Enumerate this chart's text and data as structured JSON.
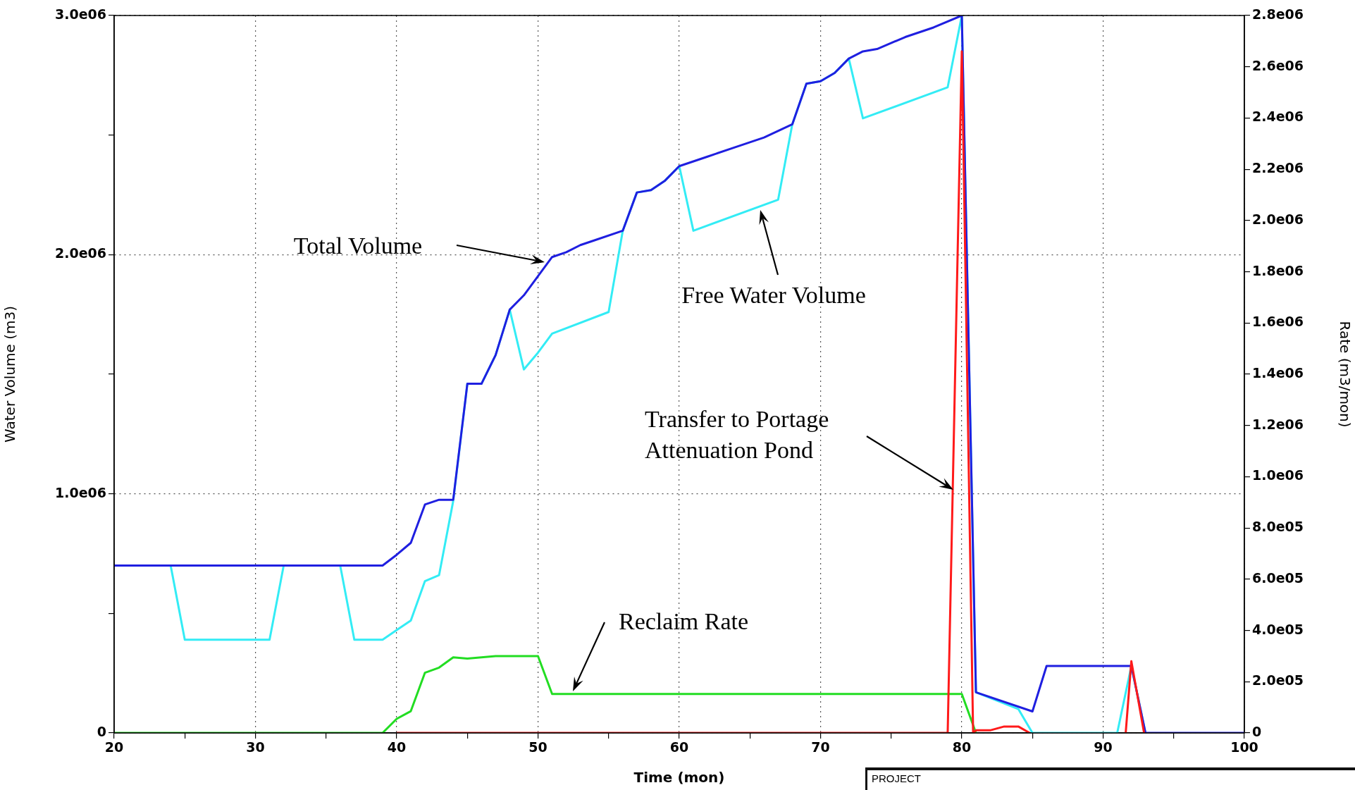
{
  "chart_data": {
    "type": "line",
    "xlabel": "Time (mon)",
    "ylabel": "Water Volume (m3)",
    "y2label": "Rate (m3/mon)",
    "xlim": [
      20,
      100
    ],
    "xticks": [
      20,
      {
        "value": 25,
        "label": null
      },
      30,
      {
        "value": 35,
        "label": null
      },
      40,
      {
        "value": 45,
        "label": null
      },
      50,
      {
        "value": 55,
        "label": null
      },
      60,
      {
        "value": 65,
        "label": null
      },
      70,
      {
        "value": 75,
        "label": null
      },
      80,
      {
        "value": 85,
        "label": null
      },
      90,
      {
        "value": 95,
        "label": null
      },
      100
    ],
    "ylim": [
      0,
      3000000
    ],
    "yticks": [
      {
        "value": 0,
        "label": "0"
      },
      {
        "value": 500000,
        "label": null
      },
      {
        "value": 1000000,
        "label": "1.0e06"
      },
      {
        "value": 1500000,
        "label": null
      },
      {
        "value": 2000000,
        "label": "2.0e06"
      },
      {
        "value": 2500000,
        "label": null
      },
      {
        "value": 3000000,
        "label": "3.0e06"
      }
    ],
    "y2lim": [
      0,
      2800000
    ],
    "y2ticks": [
      {
        "value": 0,
        "label": "0"
      },
      {
        "value": 200000,
        "label": "2.0e05"
      },
      {
        "value": 400000,
        "label": "4.0e05"
      },
      {
        "value": 600000,
        "label": "6.0e05"
      },
      {
        "value": 800000,
        "label": "8.0e05"
      },
      {
        "value": 1000000,
        "label": "1.0e06"
      },
      {
        "value": 1200000,
        "label": "1.2e06"
      },
      {
        "value": 1400000,
        "label": "1.4e06"
      },
      {
        "value": 1600000,
        "label": "1.6e06"
      },
      {
        "value": 1800000,
        "label": "1.8e06"
      },
      {
        "value": 2000000,
        "label": "2.0e06"
      },
      {
        "value": 2200000,
        "label": "2.2e06"
      },
      {
        "value": 2400000,
        "label": "2.4e06"
      },
      {
        "value": 2600000,
        "label": "2.6e06"
      },
      {
        "value": 2800000,
        "label": "2.8e06"
      }
    ],
    "grid": true,
    "legend": false,
    "marker": "none",
    "line_style": "solid",
    "series": [
      {
        "color": "#ff1a1a",
        "axis": "y2",
        "x": [
          40,
          79,
          80,
          80.8,
          81,
          82,
          83,
          84,
          84.8,
          88,
          91.6,
          92,
          92.9
        ],
        "values": [
          0,
          0,
          2660000,
          0,
          10000,
          10000,
          25000,
          25000,
          0,
          null,
          0,
          280000,
          0
        ]
      },
      {
        "color": "#1f1fe0",
        "x": [
          20,
          39,
          40,
          41,
          42,
          43,
          44,
          45,
          46,
          47,
          48,
          49,
          50,
          51,
          52,
          53,
          54,
          56,
          57,
          58,
          59,
          60,
          62,
          64,
          66,
          68,
          69,
          70,
          71,
          72,
          73,
          74,
          76,
          78,
          80,
          81,
          85,
          86,
          92,
          93,
          100
        ],
        "values": [
          700000,
          700000,
          745000,
          795000,
          955000,
          975000,
          975000,
          1460000,
          1460000,
          1580000,
          1770000,
          1830000,
          1910000,
          1990000,
          2010000,
          2040000,
          2060000,
          2100000,
          2260000,
          2270000,
          2310000,
          2370000,
          2410000,
          2450000,
          2490000,
          2545000,
          2715000,
          2725000,
          2760000,
          2820000,
          2850000,
          2860000,
          2910000,
          2950000,
          3000000,
          170000,
          90000,
          280000,
          280000,
          0,
          0
        ]
      },
      {
        "color": "#33ecf5",
        "x": [
          24,
          25,
          31,
          32,
          36,
          37,
          39,
          40,
          41,
          42,
          43,
          44,
          45,
          46,
          47,
          48,
          49,
          50,
          51,
          55,
          56,
          57,
          58,
          59,
          60,
          61,
          67,
          68,
          69,
          70,
          71,
          72,
          73,
          79,
          80,
          81,
          84,
          85,
          91,
          92,
          93
        ],
        "values": [
          700000,
          390000,
          390000,
          700000,
          700000,
          390000,
          390000,
          430000,
          470000,
          635000,
          660000,
          970000,
          1460000,
          1460000,
          1580000,
          1770000,
          1520000,
          1590000,
          1670000,
          1760000,
          2100000,
          2260000,
          2270000,
          2310000,
          2370000,
          2100000,
          2230000,
          2545000,
          2715000,
          2725000,
          2760000,
          2820000,
          2570000,
          2700000,
          3000000,
          170000,
          100000,
          0,
          0,
          280000,
          0
        ]
      },
      {
        "color": "#22dd22",
        "axis": "y2",
        "x": [
          20,
          39,
          40,
          41,
          42,
          43,
          44,
          45,
          47,
          50,
          51,
          80,
          81
        ],
        "values": [
          0,
          0,
          55000,
          85000,
          235000,
          255000,
          295000,
          290000,
          300000,
          300000,
          152000,
          152000,
          0
        ]
      }
    ],
    "annotations": [
      "Total Volume",
      "Free Water Volume",
      "Transfer to Portage\nAttenuation Pond",
      "Reclaim Rate",
      "PROJECT"
    ]
  }
}
